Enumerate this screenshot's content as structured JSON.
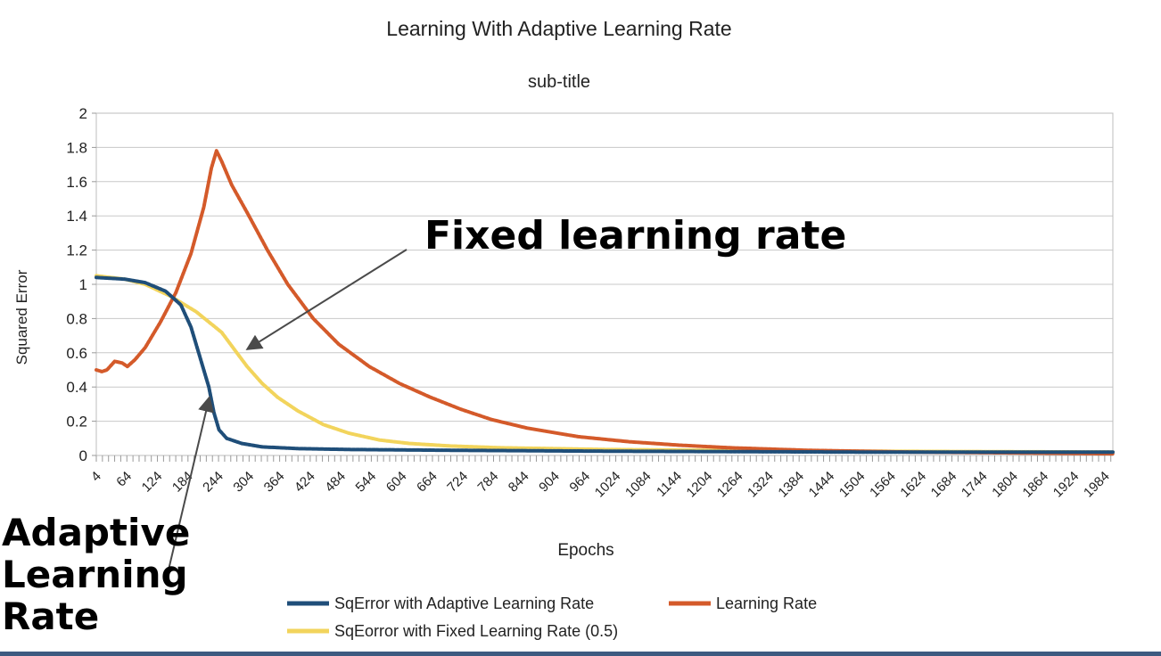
{
  "chart_data": {
    "type": "line",
    "title": "Learning With Adaptive Learning Rate",
    "subtitle": "sub-title",
    "xlabel": "Epochs",
    "ylabel": "Squared Error",
    "ylim": [
      0,
      2
    ],
    "xlim": [
      4,
      2000
    ],
    "y_ticks": [
      "0",
      "0.2",
      "0.4",
      "0.6",
      "0.8",
      "1",
      "1.2",
      "1.4",
      "1.6",
      "1.8",
      "2"
    ],
    "x_tick_labels": [
      "4",
      "64",
      "124",
      "184",
      "244",
      "304",
      "364",
      "424",
      "484",
      "544",
      "604",
      "664",
      "724",
      "784",
      "844",
      "904",
      "964",
      "1024",
      "1084",
      "1144",
      "1204",
      "1264",
      "1324",
      "1384",
      "1444",
      "1504",
      "1564",
      "1624",
      "1684",
      "1744",
      "1804",
      "1864",
      "1924",
      "1984"
    ],
    "grid": true,
    "legend_position": "bottom",
    "series": [
      {
        "name": "SqError with Adaptive Learning Rate",
        "color": "#1f4e79",
        "points": [
          [
            4,
            1.04
          ],
          [
            60,
            1.03
          ],
          [
            100,
            1.01
          ],
          [
            140,
            0.96
          ],
          [
            170,
            0.88
          ],
          [
            190,
            0.75
          ],
          [
            205,
            0.6
          ],
          [
            215,
            0.5
          ],
          [
            225,
            0.4
          ],
          [
            235,
            0.25
          ],
          [
            245,
            0.15
          ],
          [
            260,
            0.1
          ],
          [
            290,
            0.07
          ],
          [
            330,
            0.05
          ],
          [
            400,
            0.04
          ],
          [
            500,
            0.035
          ],
          [
            700,
            0.03
          ],
          [
            1000,
            0.025
          ],
          [
            1500,
            0.02
          ],
          [
            2000,
            0.02
          ]
        ]
      },
      {
        "name": "Learning Rate",
        "color": "#d45a2a",
        "points": [
          [
            4,
            0.5
          ],
          [
            15,
            0.49
          ],
          [
            25,
            0.5
          ],
          [
            40,
            0.55
          ],
          [
            55,
            0.54
          ],
          [
            65,
            0.52
          ],
          [
            80,
            0.56
          ],
          [
            100,
            0.63
          ],
          [
            130,
            0.78
          ],
          [
            160,
            0.95
          ],
          [
            190,
            1.18
          ],
          [
            215,
            1.45
          ],
          [
            230,
            1.68
          ],
          [
            240,
            1.78
          ],
          [
            250,
            1.72
          ],
          [
            270,
            1.58
          ],
          [
            300,
            1.42
          ],
          [
            340,
            1.2
          ],
          [
            380,
            1.0
          ],
          [
            430,
            0.8
          ],
          [
            480,
            0.65
          ],
          [
            540,
            0.52
          ],
          [
            600,
            0.42
          ],
          [
            660,
            0.34
          ],
          [
            720,
            0.27
          ],
          [
            780,
            0.21
          ],
          [
            850,
            0.16
          ],
          [
            950,
            0.11
          ],
          [
            1050,
            0.08
          ],
          [
            1150,
            0.06
          ],
          [
            1250,
            0.045
          ],
          [
            1400,
            0.03
          ],
          [
            1600,
            0.02
          ],
          [
            1800,
            0.015
          ],
          [
            2000,
            0.01
          ]
        ]
      },
      {
        "name": "SqEorror with Fixed Learning Rate (0.5)",
        "color": "#f2d45c",
        "points": [
          [
            4,
            1.05
          ],
          [
            60,
            1.03
          ],
          [
            100,
            1.0
          ],
          [
            150,
            0.93
          ],
          [
            200,
            0.84
          ],
          [
            250,
            0.72
          ],
          [
            280,
            0.6
          ],
          [
            300,
            0.52
          ],
          [
            330,
            0.42
          ],
          [
            360,
            0.34
          ],
          [
            400,
            0.26
          ],
          [
            450,
            0.18
          ],
          [
            500,
            0.13
          ],
          [
            560,
            0.09
          ],
          [
            620,
            0.07
          ],
          [
            700,
            0.055
          ],
          [
            800,
            0.045
          ],
          [
            900,
            0.04
          ],
          [
            1000,
            0.035
          ],
          [
            1200,
            0.03
          ],
          [
            1500,
            0.025
          ],
          [
            2000,
            0.02
          ]
        ]
      }
    ],
    "annotations": [
      {
        "text": "Fixed learning rate",
        "target_x": 300,
        "target_y": 0.62
      },
      {
        "text": "Adaptive Learning Rate",
        "target_x": 226,
        "target_y": 0.34
      }
    ]
  },
  "annotation_fixed": "Fixed learning rate",
  "annotation_adaptive": [
    "Adaptive",
    "Learning",
    "Rate"
  ],
  "strip_color": "#3d5a80"
}
